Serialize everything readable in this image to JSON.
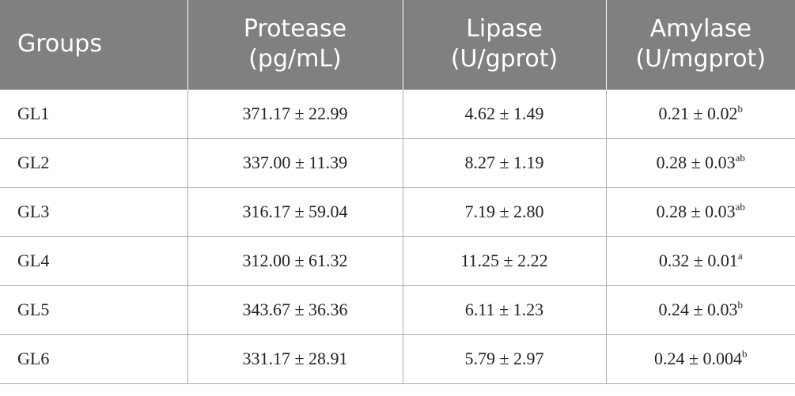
{
  "table": {
    "headers": [
      "Groups",
      "Protease (pg/mL)",
      "Lipase (U/gprot)",
      "Amylase (U/mgprot)"
    ],
    "rows": [
      [
        "GL1",
        "371.17 ± 22.99",
        "4.62 ± 1.49",
        {
          "text": "0.21 ± 0.02",
          "sup": "b"
        }
      ],
      [
        "GL2",
        "337.00 ± 11.39",
        "8.27 ± 1.19",
        {
          "text": "0.28 ± 0.03",
          "sup": "ab"
        }
      ],
      [
        "GL3",
        "316.17 ± 59.04",
        "7.19 ± 2.80",
        {
          "text": "0.28 ± 0.03",
          "sup": "ab"
        }
      ],
      [
        "GL4",
        "312.00 ± 61.32",
        "11.25 ± 2.22",
        {
          "text": "0.32 ± 0.01",
          "sup": "a"
        }
      ],
      [
        "GL5",
        "343.67 ± 36.36",
        "6.11 ± 1.23",
        {
          "text": "0.24 ± 0.03",
          "sup": "b"
        }
      ],
      [
        "GL6",
        "331.17 ± 28.91",
        "5.79 ± 2.97",
        {
          "text": "0.24 ± 0.004",
          "sup": "b"
        }
      ]
    ]
  }
}
